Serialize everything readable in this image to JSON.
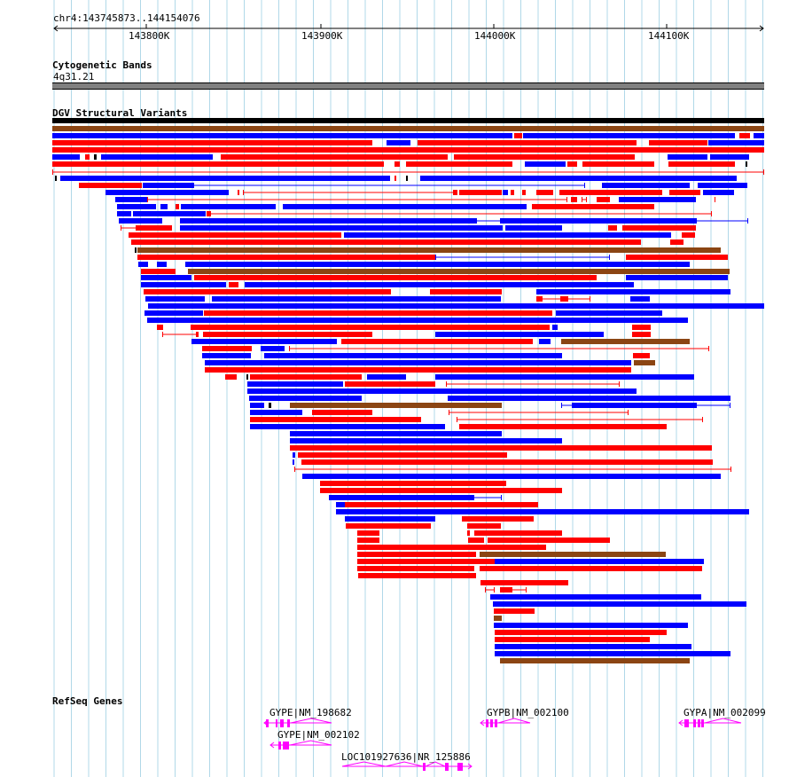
{
  "locus": "chr4:143745873..144154076",
  "ruler_ticks": [
    "143800K",
    "143900K",
    "144000K",
    "144100K"
  ],
  "tracks": {
    "cytoband": {
      "title": "Cytogenetic Bands",
      "band": "4q31.21"
    },
    "dgv": {
      "title": "DGV Structural Variants"
    },
    "refseq": {
      "title": "RefSeq Genes"
    }
  },
  "genes": [
    {
      "label": "GYPE|NM_198682"
    },
    {
      "label": "GYPE|NM_002102"
    },
    {
      "label": "LOC101927636|NR_125886"
    },
    {
      "label": "GYPB|NM_002100"
    },
    {
      "label": "GYPA|NM_002099"
    }
  ],
  "colors": {
    "loss": "#ff0000",
    "gain": "#0000ff",
    "gain_loss": "#8b4513",
    "gene": "#ff00ff",
    "grid": "#b0d8e8",
    "band": "#808080"
  }
}
